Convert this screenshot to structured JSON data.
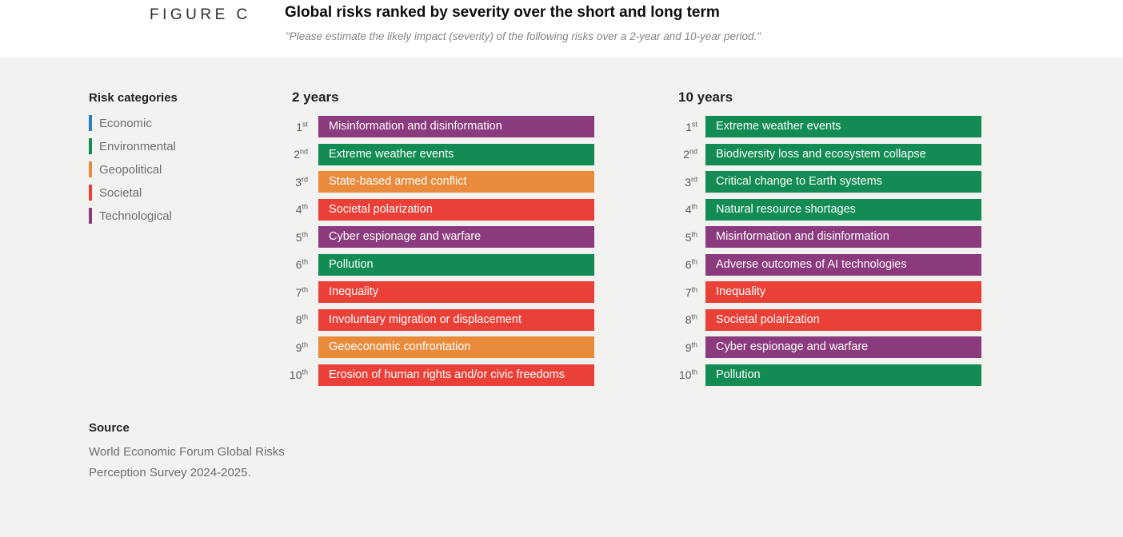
{
  "figure": {
    "label": "FIGURE C",
    "title": "Global risks ranked by severity over the short and long term",
    "subtitle": "\"Please estimate the likely impact (severity) of the following risks over a 2-year and 10-year period.\""
  },
  "legend": {
    "title": "Risk categories",
    "items": [
      {
        "label": "Economic",
        "color": "#2d7fc1"
      },
      {
        "label": "Environmental",
        "color": "#128c53"
      },
      {
        "label": "Geopolitical",
        "color": "#ea8b3c"
      },
      {
        "label": "Societal",
        "color": "#ea4037"
      },
      {
        "label": "Technological",
        "color": "#8c3a7e"
      }
    ]
  },
  "chart_data": {
    "type": "table",
    "title": "Global risks ranked by severity over the short and long term",
    "subtitle": "\"Please estimate the likely impact (severity) of the following risks over a 2-year and 10-year period.\"",
    "legend_title": "Risk categories",
    "categories": [
      "Economic",
      "Environmental",
      "Geopolitical",
      "Societal",
      "Technological"
    ],
    "category_colors": {
      "Economic": "#2d7fc1",
      "Environmental": "#128c53",
      "Geopolitical": "#ea8b3c",
      "Societal": "#ea4037",
      "Technological": "#8c3a7e"
    },
    "columns": [
      {
        "title": "2 years",
        "rows": [
          {
            "rank": "1",
            "suffix": "st",
            "label": "Misinformation and disinformation",
            "category": "Technological"
          },
          {
            "rank": "2",
            "suffix": "nd",
            "label": "Extreme weather events",
            "category": "Environmental"
          },
          {
            "rank": "3",
            "suffix": "rd",
            "label": "State-based armed conflict",
            "category": "Geopolitical"
          },
          {
            "rank": "4",
            "suffix": "th",
            "label": "Societal polarization",
            "category": "Societal"
          },
          {
            "rank": "5",
            "suffix": "th",
            "label": "Cyber espionage and warfare",
            "category": "Technological"
          },
          {
            "rank": "6",
            "suffix": "th",
            "label": "Pollution",
            "category": "Environmental"
          },
          {
            "rank": "7",
            "suffix": "th",
            "label": "Inequality",
            "category": "Societal"
          },
          {
            "rank": "8",
            "suffix": "th",
            "label": "Involuntary migration or displacement",
            "category": "Societal"
          },
          {
            "rank": "9",
            "suffix": "th",
            "label": "Geoeconomic confrontation",
            "category": "Geopolitical"
          },
          {
            "rank": "10",
            "suffix": "th",
            "label": "Erosion of human rights and/or civic freedoms",
            "category": "Societal"
          }
        ]
      },
      {
        "title": "10 years",
        "rows": [
          {
            "rank": "1",
            "suffix": "st",
            "label": "Extreme weather events",
            "category": "Environmental"
          },
          {
            "rank": "2",
            "suffix": "nd",
            "label": "Biodiversity loss and ecosystem collapse",
            "category": "Environmental"
          },
          {
            "rank": "3",
            "suffix": "rd",
            "label": "Critical change to Earth systems",
            "category": "Environmental"
          },
          {
            "rank": "4",
            "suffix": "th",
            "label": "Natural resource shortages",
            "category": "Environmental"
          },
          {
            "rank": "5",
            "suffix": "th",
            "label": "Misinformation and disinformation",
            "category": "Technological"
          },
          {
            "rank": "6",
            "suffix": "th",
            "label": "Adverse outcomes of AI technologies",
            "category": "Technological"
          },
          {
            "rank": "7",
            "suffix": "th",
            "label": "Inequality",
            "category": "Societal"
          },
          {
            "rank": "8",
            "suffix": "th",
            "label": "Societal polarization",
            "category": "Societal"
          },
          {
            "rank": "9",
            "suffix": "th",
            "label": "Cyber espionage and warfare",
            "category": "Technological"
          },
          {
            "rank": "10",
            "suffix": "th",
            "label": "Pollution",
            "category": "Environmental"
          }
        ]
      }
    ]
  },
  "source": {
    "title": "Source",
    "lines": [
      "World Economic Forum Global Risks",
      "Perception Survey 2024-2025."
    ]
  }
}
